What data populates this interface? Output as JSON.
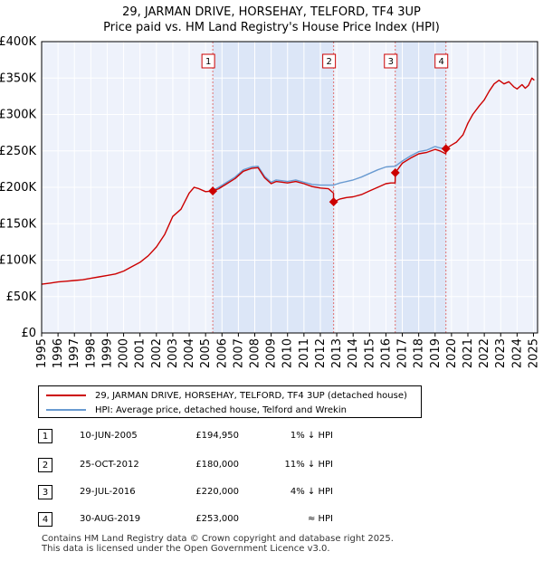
{
  "chart_data": {
    "type": "line",
    "title": "29, JARMAN DRIVE, HORSEHAY, TELFORD, TF4 3UP",
    "subtitle": "Price paid vs. HM Land Registry's House Price Index (HPI)",
    "xlabel": "",
    "ylabel": "",
    "xlim": [
      1995,
      2025.25
    ],
    "ylim": [
      0,
      400000
    ],
    "y_ticks": [
      0,
      50000,
      100000,
      150000,
      200000,
      250000,
      300000,
      350000,
      400000
    ],
    "y_tick_labels": [
      "£0",
      "£50K",
      "£100K",
      "£150K",
      "£200K",
      "£250K",
      "£300K",
      "£350K",
      "£400K"
    ],
    "x_ticks": [
      1995,
      1996,
      1997,
      1998,
      1999,
      2000,
      2001,
      2002,
      2003,
      2004,
      2005,
      2006,
      2007,
      2008,
      2009,
      2010,
      2011,
      2012,
      2013,
      2014,
      2015,
      2016,
      2017,
      2018,
      2019,
      2020,
      2021,
      2022,
      2023,
      2024,
      2025
    ],
    "x_tick_labels": [
      "1995",
      "1996",
      "1997",
      "1998",
      "1999",
      "2000",
      "2001",
      "2002",
      "2003",
      "2004",
      "2005",
      "2006",
      "2007",
      "2008",
      "2009",
      "2010",
      "2011",
      "2012",
      "2013",
      "2014",
      "2015",
      "2016",
      "2017",
      "2018",
      "2019",
      "2020",
      "2021",
      "2022",
      "2023",
      "2024",
      "2025"
    ],
    "grid": true,
    "shaded_ranges": [
      [
        2005.44,
        2012.81
      ],
      [
        2016.57,
        2019.66
      ]
    ],
    "series": [
      {
        "name": "29, JARMAN DRIVE, HORSEHAY, TELFORD, TF4 3UP (detached house)",
        "color": "#cc0000",
        "x": [
          1995,
          1995.5,
          1996,
          1996.5,
          1997,
          1997.5,
          1998,
          1998.5,
          1999,
          1999.5,
          2000,
          2000.5,
          2001,
          2001.5,
          2002,
          2002.5,
          2003,
          2003.5,
          2004,
          2004.3,
          2004.6,
          2005,
          2005.44,
          2005.8,
          2006.3,
          2006.8,
          2007.3,
          2007.8,
          2008.2,
          2008.6,
          2009,
          2009.3,
          2009.7,
          2010,
          2010.5,
          2011,
          2011.5,
          2012,
          2012.5,
          2012.8,
          2012.81,
          2013.2,
          2013.6,
          2014,
          2014.5,
          2015,
          2015.5,
          2016,
          2016.3,
          2016.56,
          2016.57,
          2017,
          2017.5,
          2018,
          2018.5,
          2019,
          2019.3,
          2019.65,
          2019.66,
          2020,
          2020.3,
          2020.7,
          2021,
          2021.3,
          2021.7,
          2022,
          2022.3,
          2022.6,
          2022.9,
          2023.2,
          2023.5,
          2023.8,
          2024,
          2024.3,
          2024.5,
          2024.7,
          2024.9,
          2025.05
        ],
        "values": [
          67000,
          68500,
          70000,
          71000,
          72000,
          73000,
          75000,
          77000,
          79000,
          81000,
          85000,
          91000,
          97000,
          106000,
          118000,
          135000,
          160000,
          170000,
          192000,
          200000,
          198000,
          194000,
          194950,
          198000,
          205000,
          212000,
          222000,
          226000,
          227000,
          213000,
          205000,
          208000,
          207000,
          206000,
          208000,
          205000,
          201000,
          199000,
          198000,
          192000,
          180000,
          184000,
          186000,
          187000,
          190000,
          195000,
          200000,
          205000,
          206000,
          206000,
          220000,
          233000,
          240000,
          246000,
          248000,
          252000,
          250000,
          246000,
          253000,
          258000,
          262000,
          272000,
          288000,
          300000,
          312000,
          320000,
          332000,
          342000,
          347000,
          342000,
          345000,
          338000,
          335000,
          341000,
          336000,
          340000,
          350000,
          347000
        ]
      },
      {
        "name": "HPI: Average price, detached house, Telford and Wrekin",
        "color": "#6a9bd1",
        "x": [
          2005.44,
          2005.8,
          2006.3,
          2006.8,
          2007.3,
          2007.8,
          2008.2,
          2008.6,
          2009,
          2009.3,
          2009.7,
          2010,
          2010.5,
          2011,
          2011.5,
          2012,
          2012.5,
          2012.81,
          2013.2,
          2013.6,
          2014,
          2014.5,
          2015,
          2015.5,
          2016,
          2016.57,
          2017,
          2017.5,
          2018,
          2018.5,
          2019,
          2019.3,
          2019.66
        ],
        "values": [
          196000,
          200000,
          207000,
          214000,
          224000,
          228000,
          229000,
          215000,
          207000,
          210000,
          209000,
          208000,
          210000,
          207000,
          204000,
          203000,
          203000,
          203000,
          206000,
          208000,
          210000,
          214000,
          219000,
          224000,
          228000,
          229000,
          236000,
          243000,
          249000,
          251000,
          256000,
          254000,
          253000
        ]
      }
    ],
    "markers": [
      {
        "label": "1",
        "x": 2005.44,
        "y": 194950
      },
      {
        "label": "2",
        "x": 2012.81,
        "y": 180000
      },
      {
        "label": "3",
        "x": 2016.57,
        "y": 220000
      },
      {
        "label": "4",
        "x": 2019.66,
        "y": 253000
      }
    ]
  },
  "legend": {
    "items": [
      {
        "label": "29, JARMAN DRIVE, HORSEHAY, TELFORD, TF4 3UP (detached house)",
        "color": "#cc0000"
      },
      {
        "label": "HPI: Average price, detached house, Telford and Wrekin",
        "color": "#6a9bd1"
      }
    ]
  },
  "transactions": [
    {
      "num": "1",
      "date": "10-JUN-2005",
      "price": "£194,950",
      "hpi": "1% ↓ HPI"
    },
    {
      "num": "2",
      "date": "25-OCT-2012",
      "price": "£180,000",
      "hpi": "11% ↓ HPI"
    },
    {
      "num": "3",
      "date": "29-JUL-2016",
      "price": "£220,000",
      "hpi": "4% ↓ HPI"
    },
    {
      "num": "4",
      "date": "30-AUG-2019",
      "price": "£253,000",
      "hpi": "≈ HPI"
    }
  ],
  "footer": {
    "line1": "Contains HM Land Registry data © Crown copyright and database right 2025.",
    "line2": "This data is licensed under the Open Government Licence v3.0."
  }
}
